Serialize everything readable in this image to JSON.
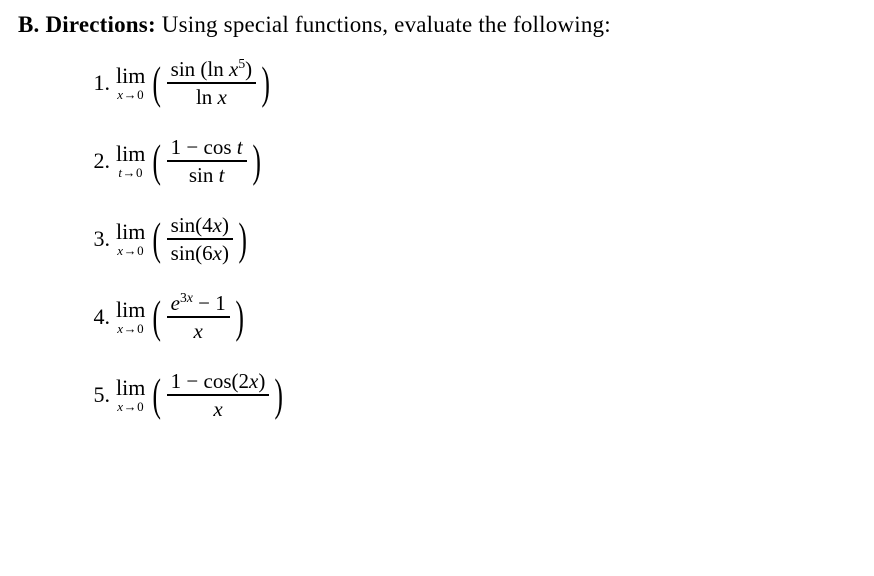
{
  "heading": {
    "label": "B. Directions:",
    "text": " Using special functions, evaluate the following:"
  },
  "problems": [
    {
      "idx": "1.",
      "lim_top": "lim",
      "lim_bot_var": "x",
      "lim_bot_arrow": "→",
      "lim_bot_to": "0",
      "num_html": "sin (ln <span class='ital'>x</span><sup>5</sup>)",
      "den_html": "ln <span class='ital'>x</span>"
    },
    {
      "idx": "2.",
      "lim_top": "lim",
      "lim_bot_var": "t",
      "lim_bot_arrow": "→",
      "lim_bot_to": "0",
      "num_html": "1 − cos <span class='ital'>t</span>",
      "den_html": "sin <span class='ital'>t</span>"
    },
    {
      "idx": "3.",
      "lim_top": "lim",
      "lim_bot_var": "x",
      "lim_bot_arrow": "→",
      "lim_bot_to": "0",
      "num_html": "sin(4<span class='ital'>x</span>)",
      "den_html": "sin(6<span class='ital'>x</span>)"
    },
    {
      "idx": "4.",
      "lim_top": "lim",
      "lim_bot_var": "x",
      "lim_bot_arrow": "→",
      "lim_bot_to": "0",
      "num_html": "<span class='ital'>e</span><sup>3<span class='ital'>x</span></sup> − 1",
      "den_html": "<span class='ital'>x</span>"
    },
    {
      "idx": "5.",
      "lim_top": "lim",
      "lim_bot_var": "x",
      "lim_bot_arrow": "→",
      "lim_bot_to": "0",
      "num_html": "1 − cos(2<span class='ital'>x</span>)",
      "den_html": "<span class='ital'>x</span>"
    }
  ]
}
